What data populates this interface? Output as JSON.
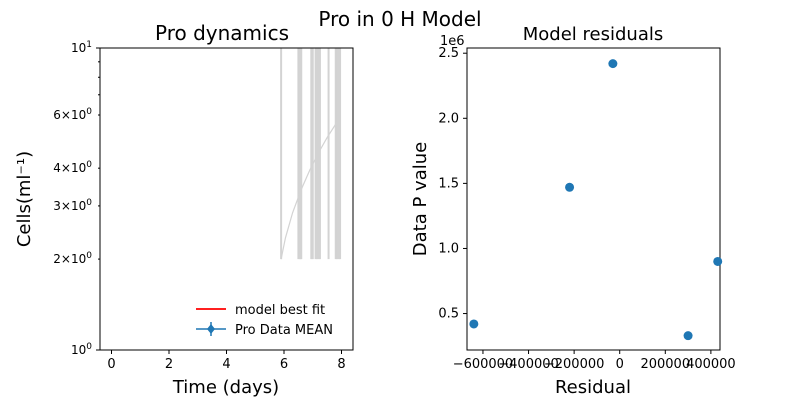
{
  "figure": {
    "suptitle": "Pro in 0 H Model"
  },
  "chart_data": [
    {
      "type": "line",
      "title": "Pro dynamics",
      "xlabel": "Time (days)",
      "ylabel": "Cells(ml⁻¹)",
      "yscale": "log",
      "xlim": [
        -0.4,
        8.4
      ],
      "ylim": [
        1,
        10
      ],
      "xticks": [
        0,
        2,
        4,
        6,
        8
      ],
      "xtick_labels": [
        "0",
        "2",
        "4",
        "6",
        "8"
      ],
      "yticks": [
        1,
        2,
        3,
        4,
        6,
        10
      ],
      "ytick_labels": [
        {
          "base": "10",
          "exp": "0",
          "pre": ""
        },
        {
          "base": "10",
          "exp": "0",
          "pre": "2×"
        },
        {
          "base": "10",
          "exp": "0",
          "pre": "3×"
        },
        {
          "base": "10",
          "exp": "0",
          "pre": "4×"
        },
        {
          "base": "10",
          "exp": "0",
          "pre": "6×"
        },
        {
          "base": "10",
          "exp": "1",
          "pre": ""
        }
      ],
      "ensemble_color": "#d3d3d3",
      "ensemble_curve": {
        "x": [
          5.9,
          6.05,
          6.3,
          6.6,
          6.9,
          7.2,
          7.5,
          7.8,
          7.95
        ],
        "y": [
          2.0,
          2.35,
          2.85,
          3.4,
          3.95,
          4.5,
          5.05,
          5.6,
          5.9
        ]
      },
      "ensemble_vlines": [
        5.9,
        6.5,
        6.55,
        6.58,
        6.6,
        6.95,
        7.0,
        7.1,
        7.15,
        7.2,
        7.25,
        7.55,
        7.8,
        7.85,
        7.9,
        7.95
      ],
      "legend": {
        "location": "lower-right",
        "entries": [
          {
            "label": " model best fit",
            "color": "#ff0000",
            "marker": "line"
          },
          {
            "label": "Pro Data MEAN",
            "color": "#1f77b4",
            "marker": "errorbar"
          }
        ]
      },
      "grid": false
    },
    {
      "type": "scatter",
      "title": "Model residuals",
      "xlabel": "Residual",
      "ylabel": "Data P value",
      "offset_text": "1e6",
      "color": "#1f77b4",
      "xlim": [
        -670000,
        440000
      ],
      "ylim": [
        220000,
        2540000
      ],
      "xticks": [
        -600000,
        -400000,
        -200000,
        0,
        200000,
        400000
      ],
      "xtick_labels": [
        "−600000",
        "−400000",
        "−200000",
        "0",
        "200000",
        "400000"
      ],
      "yticks": [
        500000,
        1000000,
        1500000,
        2000000,
        2500000
      ],
      "ytick_labels": [
        "0.5",
        "1.0",
        "1.5",
        "2.0",
        "2.5"
      ],
      "points": [
        {
          "x": -640000,
          "y": 420000
        },
        {
          "x": -220000,
          "y": 1470000
        },
        {
          "x": -30000,
          "y": 2420000
        },
        {
          "x": 300000,
          "y": 330000
        },
        {
          "x": 430000,
          "y": 900000
        }
      ],
      "grid": false
    }
  ]
}
